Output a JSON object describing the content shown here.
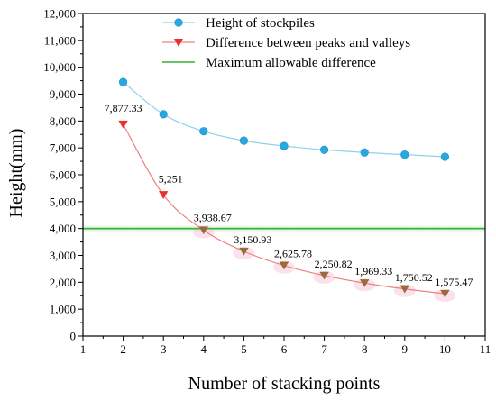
{
  "chart_data": {
    "type": "line",
    "title": "",
    "xlabel": "Number of stacking points",
    "ylabel": "Height(mm)",
    "xlim": [
      1,
      11
    ],
    "ylim": [
      0,
      12000
    ],
    "x_ticks": [
      1,
      2,
      3,
      4,
      5,
      6,
      7,
      8,
      9,
      10,
      11
    ],
    "y_ticks": [
      0,
      1000,
      2000,
      3000,
      4000,
      5000,
      6000,
      7000,
      8000,
      9000,
      10000,
      11000,
      12000
    ],
    "y_tick_labels": [
      "0",
      "1,000",
      "2,000",
      "3,000",
      "4,000",
      "5,000",
      "6,000",
      "7,000",
      "8,000",
      "9,000",
      "10,000",
      "11,000",
      "12,000"
    ],
    "grid": false,
    "legend_position": "top-right",
    "x": [
      2,
      3,
      4,
      5,
      6,
      7,
      8,
      9,
      10
    ],
    "series": [
      {
        "name": "Height of stockpiles",
        "color": "#29a8e0",
        "marker": "circle",
        "values": [
          9450,
          8250,
          7620,
          7270,
          7070,
          6930,
          6830,
          6750,
          6670
        ]
      },
      {
        "name": "Difference between peaks and valleys",
        "color": "#e8312f",
        "marker": "triangle-down",
        "values": [
          7877.33,
          5251,
          3938.67,
          3150.93,
          2625.78,
          2250.82,
          1969.33,
          1750.52,
          1575.47
        ],
        "data_labels": [
          "7,877.33",
          "5,251",
          "3,938.67",
          "3,150.93",
          "2,625.78",
          "2,250.82",
          "1,969.33",
          "1,750.52",
          "1,575.47"
        ]
      },
      {
        "name": "Maximum allowable difference",
        "color": "#33b233",
        "marker": "none",
        "constant": 4000
      }
    ]
  }
}
